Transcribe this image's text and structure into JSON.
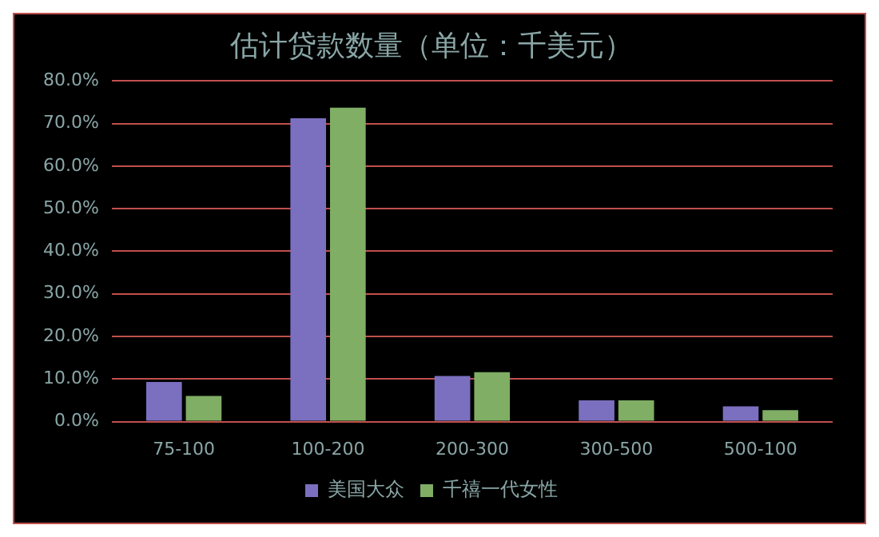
{
  "chart_data": {
    "type": "bar",
    "title": "估计贷款数量（单位：千美元）",
    "categories": [
      "75-100",
      "100-200",
      "200-300",
      "300-500",
      "500-100"
    ],
    "series": [
      {
        "name": "美国大众",
        "color": "#7b6fc0",
        "values": [
          9.3,
          71.2,
          10.7,
          5.0,
          3.6
        ]
      },
      {
        "name": "千禧一代女性",
        "color": "#7fae64",
        "values": [
          6.0,
          73.7,
          11.6,
          5.0,
          2.7
        ]
      }
    ],
    "ylim": [
      0,
      80
    ],
    "yticks": [
      {
        "value": 0,
        "label": "0.0%"
      },
      {
        "value": 10,
        "label": "10.0%"
      },
      {
        "value": 20,
        "label": "20.0%"
      },
      {
        "value": 30,
        "label": "30.0%"
      },
      {
        "value": 40,
        "label": "40.0%"
      },
      {
        "value": 50,
        "label": "50.0%"
      },
      {
        "value": 60,
        "label": "60.0%"
      },
      {
        "value": 70,
        "label": "70.0%"
      },
      {
        "value": 80,
        "label": "80.0%"
      }
    ],
    "grid": "y",
    "legend": "bottom"
  }
}
